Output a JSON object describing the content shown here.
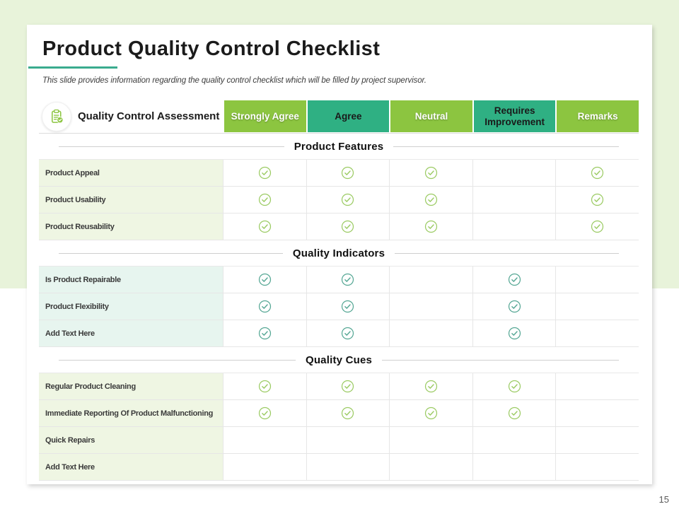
{
  "page": {
    "number": "15"
  },
  "slide": {
    "title": "Product Quality Control Checklist",
    "subtitle": "This slide provides information regarding the quality control checklist which will be filled by project supervisor.",
    "accent_color": "#3aab8e"
  },
  "table": {
    "assessment_label": "Quality Control Assessment",
    "assessment_icon": "clipboard-check-icon",
    "columns": [
      {
        "label": "Strongly Agree",
        "bg": "#8cc540",
        "color": "#ffffff"
      },
      {
        "label": "Agree",
        "bg": "#2fb083",
        "color": "#1a1a1a"
      },
      {
        "label": "Neutral",
        "bg": "#8cc540",
        "color": "#ffffff"
      },
      {
        "label": "Requires Improvement",
        "bg": "#2fb083",
        "color": "#1a1a1a"
      },
      {
        "label": "Remarks",
        "bg": "#8cc540",
        "color": "#ffffff"
      }
    ],
    "sections": [
      {
        "title": "Product Features",
        "row_bg": "#eff6e3",
        "check_color": "#9bcb63",
        "rows": [
          {
            "label": "Product Appeal",
            "checks": [
              true,
              true,
              true,
              false,
              true
            ]
          },
          {
            "label": "Product Usability",
            "checks": [
              true,
              true,
              true,
              false,
              true
            ]
          },
          {
            "label": "Product Reusability",
            "checks": [
              true,
              true,
              true,
              false,
              true
            ]
          }
        ]
      },
      {
        "title": "Quality Indicators",
        "row_bg": "#e7f5ef",
        "check_color": "#55a794",
        "rows": [
          {
            "label": "Is Product Repairable",
            "checks": [
              true,
              true,
              false,
              true,
              false
            ]
          },
          {
            "label": "Product Flexibility",
            "checks": [
              true,
              true,
              false,
              true,
              false
            ]
          },
          {
            "label": "Add Text Here",
            "checks": [
              true,
              true,
              false,
              true,
              false
            ]
          }
        ]
      },
      {
        "title": "Quality Cues",
        "row_bg": "#eff6e3",
        "check_color": "#9bcb63",
        "rows": [
          {
            "label": "Regular Product Cleaning",
            "checks": [
              true,
              true,
              true,
              true,
              false
            ]
          },
          {
            "label": "Immediate Reporting Of Product Malfunctioning",
            "checks": [
              true,
              true,
              true,
              true,
              false
            ]
          },
          {
            "label": "Quick Repairs",
            "checks": [
              false,
              false,
              false,
              false,
              false
            ]
          },
          {
            "label": "Add Text Here",
            "checks": [
              false,
              false,
              false,
              false,
              false
            ]
          }
        ]
      }
    ]
  }
}
